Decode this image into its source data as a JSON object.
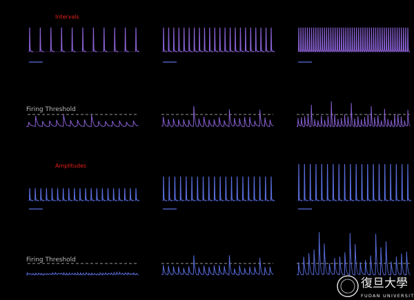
{
  "intervals": {
    "title": "Intervals",
    "threshold_label": "Firing Threshold"
  },
  "amplitudes": {
    "title": "Amplitudes",
    "threshold_label": "Firing Threshold"
  },
  "logo": {
    "name_cn": "復旦大學",
    "name_en": "FUDAN UNIVERSITY"
  }
}
